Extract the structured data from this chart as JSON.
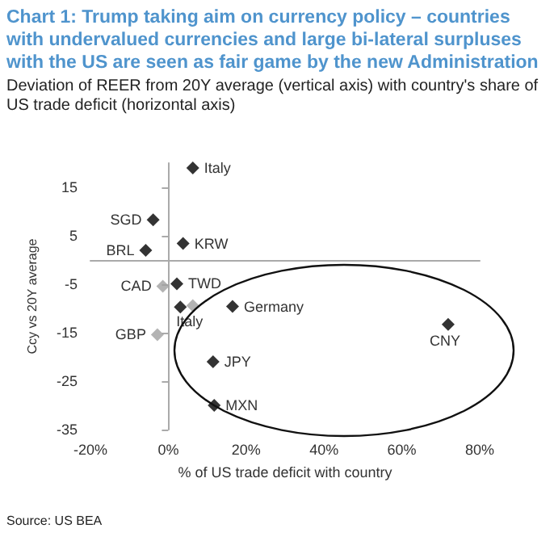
{
  "chart_data": {
    "type": "scatter",
    "title": "Chart 1: Trump taking aim on currency policy – countries with undervalued currencies and large bi-lateral surpluses with the US are seen as fair game by the new Administration",
    "subtitle": "Deviation of REER from 20Y average (vertical axis) with country's share of US trade deficit (horizontal axis)",
    "xlabel": "% of US trade deficit with country",
    "ylabel": "Ccy vs 20Y average",
    "series": [
      {
        "color": "#000000",
        "x": [
          6.3,
          -3.9,
          3.8,
          -5.8,
          2.2,
          3.1,
          16.5,
          11.5,
          11.8,
          71.9
        ],
        "values": [
          19,
          8.3,
          3.4,
          2,
          -4.9,
          -9.7,
          -9.6,
          -21,
          -30,
          -13.3
        ]
      },
      {
        "color": "#a0a0a0",
        "x": [
          -1.4,
          6.3,
          -2.8
        ],
        "values": [
          -5.4,
          -9.4,
          -15.4
        ]
      }
    ],
    "annotations": [
      {
        "text": "Italy",
        "x": 6.3,
        "y": 19
      },
      {
        "text": "SGD",
        "x": -3.9,
        "y": 8.3
      },
      {
        "text": "KRW",
        "x": 3.8,
        "y": 3.4
      },
      {
        "text": "BRL",
        "x": -5.8,
        "y": 2
      },
      {
        "text": "CAD",
        "x": -1.4,
        "y": -5.4
      },
      {
        "text": "TWD",
        "x": 2.2,
        "y": -4.9
      },
      {
        "text": "Germany",
        "x": 16.5,
        "y": -9.6
      },
      {
        "text": "Italy",
        "x": 6.3,
        "y": -9.4
      },
      {
        "text": "GBP",
        "x": -2.8,
        "y": -15.4
      },
      {
        "text": "JPY",
        "x": 11.5,
        "y": -21
      },
      {
        "text": "MXN",
        "x": 11.8,
        "y": -30
      },
      {
        "text": "CNY",
        "x": 71.9,
        "y": -13.3
      },
      "Source: US BEA"
    ],
    "xlim": [
      -20,
      80
    ],
    "xticks": [
      {
        "value": -20,
        "label": "-20%"
      },
      {
        "value": 0,
        "label": "0%"
      },
      {
        "value": 20,
        "label": "20%"
      },
      {
        "value": 40,
        "label": "40%"
      },
      {
        "value": 60,
        "label": "60%"
      },
      {
        "value": 80,
        "label": "80%"
      }
    ],
    "ylim": [
      -35,
      20
    ],
    "yticks": [
      -35,
      -25,
      -15,
      -5,
      5,
      15
    ],
    "marker": "diamond"
  }
}
